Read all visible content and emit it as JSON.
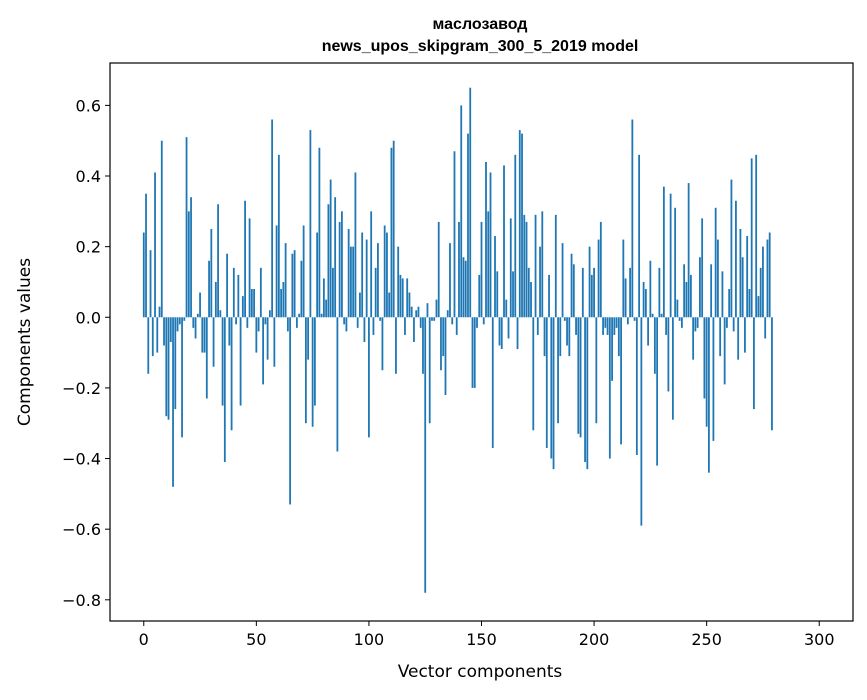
{
  "chart_data": {
    "type": "bar",
    "title": "маслозавод",
    "subtitle": "news_upos_skipgram_300_5_2019 model",
    "xlabel": "Vector components",
    "ylabel": "Components values",
    "xlim": [
      -15,
      315
    ],
    "ylim": [
      -0.86,
      0.72
    ],
    "xticks": [
      0,
      50,
      100,
      150,
      200,
      250,
      300
    ],
    "xtick_labels": [
      "0",
      "50",
      "100",
      "150",
      "200",
      "250",
      "300"
    ],
    "yticks": [
      -0.8,
      -0.6,
      -0.4,
      -0.2,
      0.0,
      0.2,
      0.4,
      0.6
    ],
    "ytick_labels": [
      "−0.8",
      "−0.6",
      "−0.4",
      "−0.2",
      "0.0",
      "0.2",
      "0.4",
      "0.6"
    ],
    "grid": false,
    "bar_color": "#1f77b4",
    "series": [
      {
        "values": [
          0.24,
          0.35,
          -0.16,
          0.19,
          -0.11,
          0.41,
          -0.1,
          0.03,
          0.5,
          -0.08,
          -0.28,
          -0.29,
          -0.07,
          -0.48,
          -0.26,
          -0.04,
          -0.02,
          -0.34,
          -0.01,
          0.51,
          0.3,
          0.34,
          -0.03,
          -0.06,
          0.01,
          0.07,
          -0.1,
          -0.1,
          -0.23,
          0.16,
          0.25,
          -0.14,
          0.1,
          0.32,
          0.02,
          -0.25,
          -0.41,
          0.18,
          -0.08,
          -0.32,
          0.14,
          -0.02,
          0.12,
          -0.25,
          0.06,
          0.33,
          -0.03,
          0.28,
          0.08,
          0.08,
          -0.1,
          -0.04,
          0.14,
          -0.19,
          -0.02,
          -0.12,
          0.02,
          0.56,
          -0.14,
          0.26,
          0.46,
          0.08,
          0.1,
          0.21,
          -0.04,
          -0.53,
          0.18,
          0.19,
          -0.03,
          0.01,
          0.16,
          0.26,
          -0.3,
          -0.12,
          0.53,
          -0.31,
          -0.25,
          0.24,
          0.48,
          0.01,
          0.11,
          0.05,
          0.32,
          0.39,
          0.14,
          0.34,
          -0.38,
          0.27,
          0.3,
          -0.02,
          -0.04,
          0.25,
          0.2,
          0.2,
          0.41,
          -0.03,
          0.07,
          0.24,
          -0.07,
          0.22,
          -0.34,
          0.3,
          -0.05,
          0.14,
          0.21,
          -0.01,
          -0.15,
          0.26,
          0.24,
          0.07,
          0.48,
          0.5,
          -0.16,
          0.2,
          0.12,
          0.11,
          -0.05,
          0.11,
          0.07,
          0.03,
          -0.07,
          0.02,
          0.03,
          -0.03,
          -0.16,
          -0.78,
          0.04,
          -0.3,
          -0.01,
          -0.01,
          0.05,
          0.27,
          -0.15,
          -0.11,
          -0.22,
          0.02,
          0.21,
          -0.02,
          0.47,
          -0.05,
          0.27,
          0.6,
          0.17,
          0.16,
          0.52,
          0.65,
          -0.2,
          -0.2,
          -0.03,
          0.12,
          0.27,
          -0.02,
          0.44,
          0.3,
          0.41,
          -0.37,
          0.23,
          0.13,
          -0.08,
          -0.09,
          0.43,
          0.05,
          -0.06,
          0.28,
          0.13,
          0.46,
          -0.09,
          0.53,
          0.52,
          0.29,
          0.27,
          0.14,
          0.1,
          -0.32,
          0.29,
          -0.05,
          0.2,
          0.3,
          -0.11,
          -0.37,
          0.12,
          -0.4,
          -0.43,
          0.29,
          -0.3,
          -0.11,
          0.21,
          -0.01,
          -0.08,
          -0.11,
          0.18,
          0.15,
          -0.05,
          -0.33,
          -0.34,
          0.14,
          -0.41,
          -0.43,
          0.2,
          0.12,
          0.14,
          -0.3,
          0.22,
          0.27,
          -0.05,
          -0.03,
          -0.05,
          -0.4,
          -0.18,
          -0.05,
          -0.03,
          -0.11,
          -0.36,
          0.22,
          0.11,
          -0.02,
          0.14,
          0.56,
          -0.01,
          -0.39,
          0.46,
          -0.59,
          0.1,
          0.08,
          -0.08,
          0.16,
          0.01,
          -0.16,
          -0.42,
          0.14,
          0.01,
          0.37,
          -0.05,
          -0.21,
          0.35,
          -0.29,
          0.31,
          0.05,
          -0.01,
          -0.03,
          0.15,
          0.1,
          0.38,
          0.12,
          -0.12,
          -0.04,
          -0.03,
          0.17,
          0.28,
          -0.23,
          -0.31,
          -0.44,
          0.15,
          -0.35,
          0.31,
          0.22,
          -0.11,
          0.13,
          -0.19,
          -0.03,
          0.08,
          0.39,
          -0.04,
          0.33,
          -0.12,
          0.25,
          0.17,
          -0.1,
          0.23,
          0.08,
          0.45,
          -0.26,
          0.46,
          0.06,
          0.14,
          0.2,
          -0.06,
          0.22,
          0.24,
          -0.32
        ]
      }
    ]
  }
}
